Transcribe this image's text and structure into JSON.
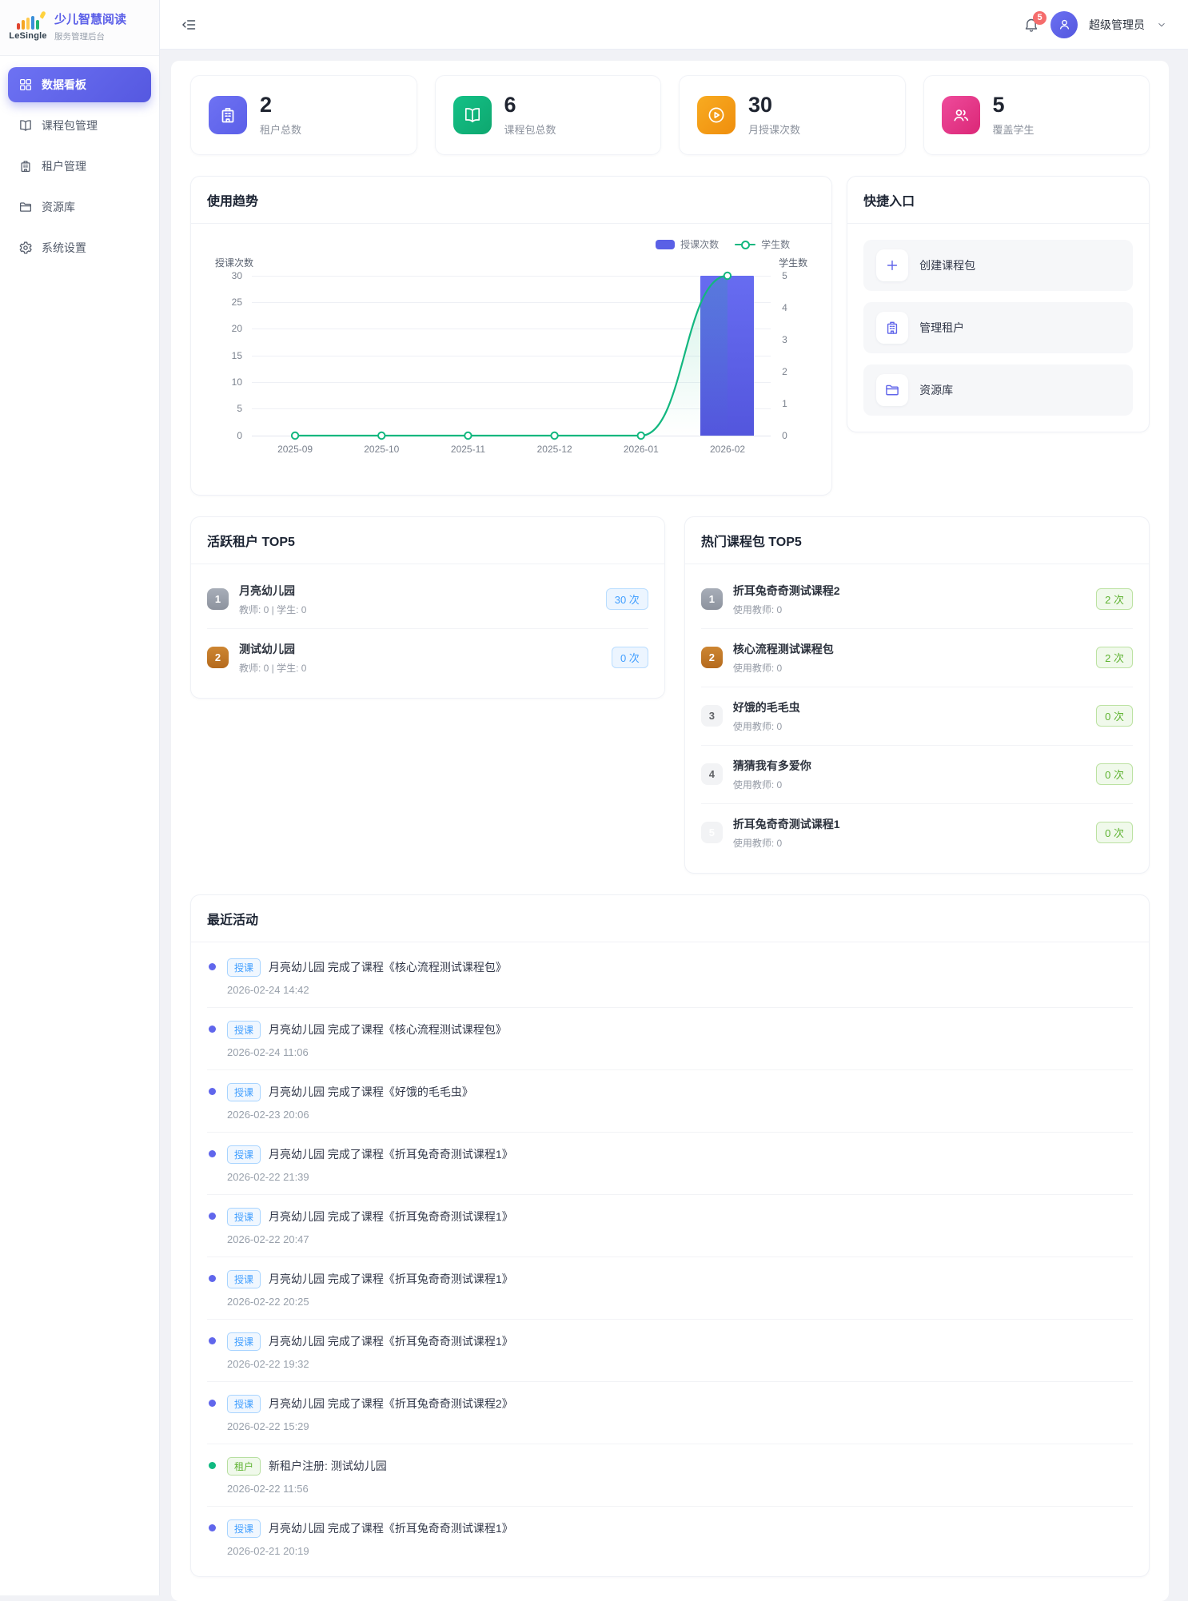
{
  "brand": {
    "logo_text": "LeSingle",
    "title": "少儿智慧阅读",
    "subtitle": "服务管理后台"
  },
  "sidebar": {
    "items": [
      {
        "label": "数据看板",
        "icon": "grid",
        "active": true
      },
      {
        "label": "课程包管理",
        "icon": "book"
      },
      {
        "label": "租户管理",
        "icon": "building"
      },
      {
        "label": "资源库",
        "icon": "folder"
      },
      {
        "label": "系统设置",
        "icon": "gear"
      }
    ]
  },
  "header": {
    "notification_count": "5",
    "user_name": "超级管理员"
  },
  "stats": [
    {
      "value": "2",
      "label": "租户总数",
      "icon": "building",
      "color": "#5b5fe8",
      "color2": "#6e72f3"
    },
    {
      "value": "6",
      "label": "课程包总数",
      "icon": "book",
      "color": "#0ea76f",
      "color2": "#14c187"
    },
    {
      "value": "30",
      "label": "月授课次数",
      "icon": "play-circle",
      "color": "#ef8e0d",
      "color2": "#f8ab21"
    },
    {
      "value": "5",
      "label": "覆盖学生",
      "icon": "people",
      "color": "#db2777",
      "color2": "#ee4b9b"
    }
  ],
  "chart_card": {
    "title": "使用趋势"
  },
  "chart_data": {
    "type": "bar+line",
    "title": "使用趋势",
    "categories": [
      "2025-09",
      "2025-10",
      "2025-11",
      "2025-12",
      "2026-01",
      "2026-02"
    ],
    "series": [
      {
        "name": "授课次数",
        "type": "bar",
        "axis": "left",
        "values": [
          0,
          0,
          0,
          0,
          0,
          30
        ],
        "color": "#5a5fe0"
      },
      {
        "name": "学生数",
        "type": "line",
        "axis": "right",
        "values": [
          0,
          0,
          0,
          0,
          0,
          5
        ],
        "color": "#12b77f"
      }
    ],
    "left_axis": {
      "label": "授课次数",
      "min": 0,
      "max": 30,
      "ticks": [
        30,
        25,
        20,
        15,
        10,
        5,
        0
      ]
    },
    "right_axis": {
      "label": "学生数",
      "min": 0,
      "max": 5,
      "ticks": [
        5,
        4,
        3,
        2,
        1,
        0
      ]
    },
    "legend": [
      "授课次数",
      "学生数"
    ],
    "legend_position": "top-right",
    "grid": true
  },
  "quick_entry": {
    "title": "快捷入口",
    "items": [
      {
        "label": "创建课程包",
        "icon": "plus"
      },
      {
        "label": "管理租户",
        "icon": "building"
      },
      {
        "label": "资源库",
        "icon": "folder"
      }
    ]
  },
  "active_tenants": {
    "title": "活跃租户 TOP5",
    "items": [
      {
        "rank": "1",
        "name": "月亮幼儿园",
        "meta": "教师: 0 | 学生: 0",
        "badge": "30 次"
      },
      {
        "rank": "2",
        "name": "测试幼儿园",
        "meta": "教师: 0 | 学生: 0",
        "badge": "0 次"
      }
    ]
  },
  "hot_packages": {
    "title": "热门课程包 TOP5",
    "items": [
      {
        "rank": "1",
        "name": "折耳兔奇奇测试课程2",
        "meta": "使用教师: 0",
        "badge": "2 次"
      },
      {
        "rank": "2",
        "name": "核心流程测试课程包",
        "meta": "使用教师: 0",
        "badge": "2 次"
      },
      {
        "rank": "3",
        "name": "好饿的毛毛虫",
        "meta": "使用教师: 0",
        "badge": "0 次"
      },
      {
        "rank": "4",
        "name": "猜猜我有多爱你",
        "meta": "使用教师: 0",
        "badge": "0 次"
      },
      {
        "rank": "5",
        "name": "折耳兔奇奇测试课程1",
        "meta": "使用教师: 0",
        "badge": "0 次"
      }
    ]
  },
  "recent": {
    "title": "最近活动",
    "items": [
      {
        "tag": "授课",
        "type": "lesson",
        "text": "月亮幼儿园 完成了课程《核心流程测试课程包》",
        "time": "2026-02-24 14:42"
      },
      {
        "tag": "授课",
        "type": "lesson",
        "text": "月亮幼儿园 完成了课程《核心流程测试课程包》",
        "time": "2026-02-24 11:06"
      },
      {
        "tag": "授课",
        "type": "lesson",
        "text": "月亮幼儿园 完成了课程《好饿的毛毛虫》",
        "time": "2026-02-23 20:06"
      },
      {
        "tag": "授课",
        "type": "lesson",
        "text": "月亮幼儿园 完成了课程《折耳兔奇奇测试课程1》",
        "time": "2026-02-22 21:39"
      },
      {
        "tag": "授课",
        "type": "lesson",
        "text": "月亮幼儿园 完成了课程《折耳兔奇奇测试课程1》",
        "time": "2026-02-22 20:47"
      },
      {
        "tag": "授课",
        "type": "lesson",
        "text": "月亮幼儿园 完成了课程《折耳兔奇奇测试课程1》",
        "time": "2026-02-22 20:25"
      },
      {
        "tag": "授课",
        "type": "lesson",
        "text": "月亮幼儿园 完成了课程《折耳兔奇奇测试课程1》",
        "time": "2026-02-22 19:32"
      },
      {
        "tag": "授课",
        "type": "lesson",
        "text": "月亮幼儿园 完成了课程《折耳兔奇奇测试课程2》",
        "time": "2026-02-22 15:29"
      },
      {
        "tag": "租户",
        "type": "tenant",
        "text": "新租户注册: 测试幼儿园",
        "time": "2026-02-22 11:56"
      },
      {
        "tag": "授课",
        "type": "lesson",
        "text": "月亮幼儿园 完成了课程《折耳兔奇奇测试课程1》",
        "time": "2026-02-21 20:19"
      }
    ]
  },
  "colors": {
    "primary": "#5a5fe0",
    "bar": "#5a5fe0",
    "line": "#12b77f",
    "badge_blue": "#409eff",
    "badge_green": "#5fb332",
    "notification_red": "#f56c6c",
    "rank1": "#f5a623",
    "rank2": "#9aa0a8",
    "rank3": "#c07b28"
  }
}
